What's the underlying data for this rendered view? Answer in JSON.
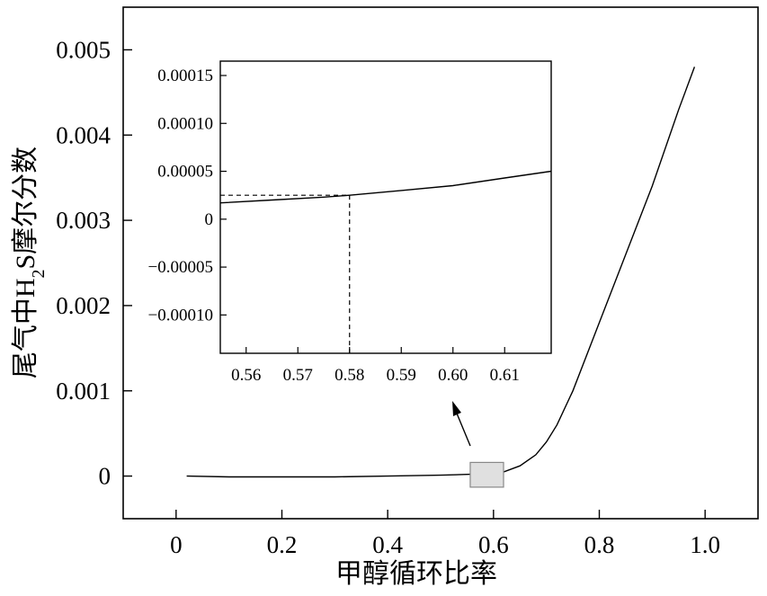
{
  "chart_data": [
    {
      "type": "line",
      "xlabel": "甲醇循环比率",
      "ylabel_parts": {
        "prefix": "尾气中H",
        "subscript": "2",
        "suffix": "S摩尔分数"
      },
      "ylabel": "尾气中H2S摩尔分数",
      "xlim": [
        -0.1,
        1.1
      ],
      "ylim": [
        -0.0005,
        0.0055
      ],
      "x_ticks": [
        0,
        0.2,
        0.4,
        0.6,
        0.8,
        1.0
      ],
      "x_tick_labels": [
        "0",
        "0.2",
        "0.4",
        "0.6",
        "0.8",
        "1.0"
      ],
      "y_ticks": [
        0,
        0.001,
        0.002,
        0.003,
        0.004,
        0.005
      ],
      "y_tick_labels": [
        "0",
        "0.001",
        "0.002",
        "0.003",
        "0.004",
        "0.005"
      ],
      "grid": false,
      "series": [
        {
          "x": [
            0.02,
            0.1,
            0.2,
            0.3,
            0.4,
            0.5,
            0.55,
            0.58,
            0.6,
            0.62,
            0.65,
            0.68,
            0.7,
            0.72,
            0.75,
            0.8,
            0.85,
            0.9,
            0.95,
            0.98
          ],
          "y": [
            0.0,
            -1e-05,
            -1e-05,
            -1e-05,
            0.0,
            1e-05,
            2e-05,
            2.5e-05,
            3.5e-05,
            5e-05,
            0.00012,
            0.00025,
            0.0004,
            0.0006,
            0.001,
            0.0018,
            0.0026,
            0.0034,
            0.0043,
            0.0048
          ]
        }
      ],
      "highlight_box": {
        "x": [
          0.556,
          0.619
        ],
        "y": [
          -0.00013,
          0.00016
        ]
      }
    },
    {
      "type": "line",
      "xlabel": "",
      "ylabel": "",
      "xlim": [
        0.555,
        0.619
      ],
      "ylim": [
        -0.00014,
        0.000165
      ],
      "x_ticks": [
        0.56,
        0.57,
        0.58,
        0.59,
        0.6,
        0.61
      ],
      "x_tick_labels": [
        "0.56",
        "0.57",
        "0.58",
        "0.59",
        "0.60",
        "0.61"
      ],
      "y_ticks": [
        0.00015,
        0.0001,
        5e-05,
        0,
        -5e-05,
        -0.0001
      ],
      "y_tick_labels": [
        "0.00015",
        "0.00010",
        "0.00005",
        "0",
        "−0.00005",
        "−0.00010"
      ],
      "grid": false,
      "series": [
        {
          "x": [
            0.555,
            0.565,
            0.575,
            0.58,
            0.59,
            0.6,
            0.61,
            0.619
          ],
          "y": [
            1.7e-05,
            2e-05,
            2.3e-05,
            2.5e-05,
            3e-05,
            3.5e-05,
            4.3e-05,
            5e-05
          ]
        }
      ],
      "marker": {
        "x": 0.58,
        "y": 2.5e-05
      }
    }
  ]
}
